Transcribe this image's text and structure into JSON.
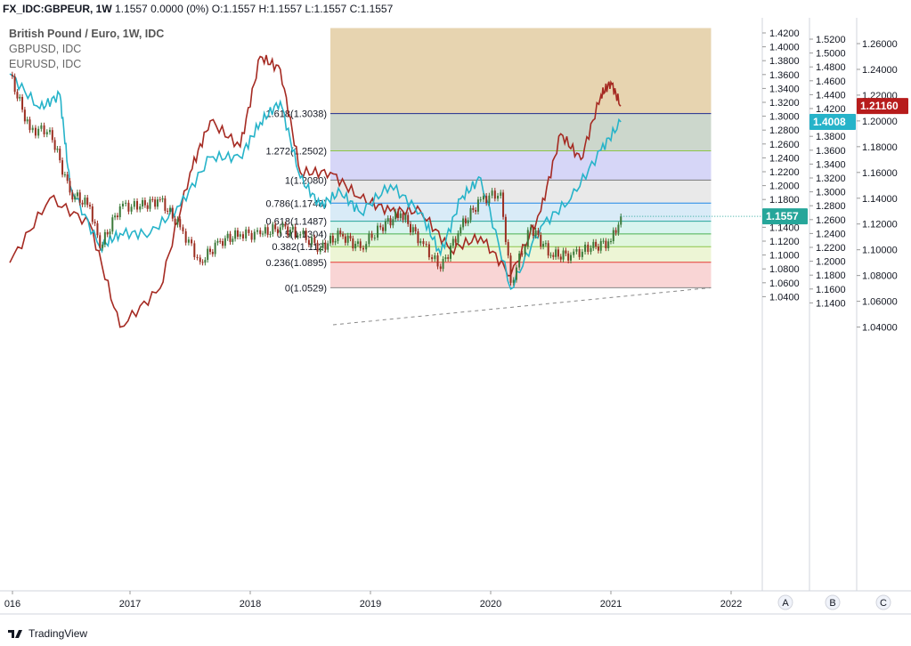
{
  "header": {
    "symbol": "FX_IDC:GBPEUR, 1W",
    "ohlc": "1.1557  0.0000 (0%)  O:1.1557  H:1.1557  L:1.1557  C:1.1557"
  },
  "legend": {
    "main": "British Pound / Euro, 1W, IDC",
    "s2": "GBPUSD, IDC",
    "s3": "EURUSD, IDC"
  },
  "footer": {
    "brand": "TradingView"
  },
  "colors": {
    "main_up": "#3c7a3a",
    "main_down": "#9b2d20",
    "gbpusd": "#26b3c9",
    "eurusd": "#a52a22",
    "badge_main": "#26a69a",
    "badge_gbpusd": "#26b3c9",
    "badge_eurusd": "#b71c1c"
  },
  "chart_data": {
    "type": "line",
    "x_ticks": [
      "016",
      "2017",
      "2018",
      "2019",
      "2020",
      "2021",
      "2022"
    ],
    "axis_A": {
      "label": "A",
      "ticks": [
        "1.4200",
        "1.4000",
        "1.3800",
        "1.3600",
        "1.3400",
        "1.3200",
        "1.3000",
        "1.2800",
        "1.2600",
        "1.2400",
        "1.2200",
        "1.2000",
        "1.1800",
        "1.1600",
        "1.1400",
        "1.1200",
        "1.1000",
        "1.0800",
        "1.0600",
        "1.0400"
      ],
      "last": "1.1557"
    },
    "axis_B": {
      "label": "B",
      "ticks": [
        "1.5200",
        "1.5000",
        "1.4800",
        "1.4600",
        "1.4400",
        "1.4200",
        "1.4000",
        "1.3800",
        "1.3600",
        "1.3400",
        "1.3200",
        "1.3000",
        "1.2800",
        "1.2600",
        "1.2400",
        "1.2200",
        "1.2000",
        "1.1800",
        "1.1600",
        "1.1400"
      ],
      "last": "1.4008"
    },
    "axis_C": {
      "label": "C",
      "ticks": [
        "1.26000",
        "1.24000",
        "1.22000",
        "1.20000",
        "1.18000",
        "1.16000",
        "1.14000",
        "1.12000",
        "1.10000",
        "1.08000",
        "1.06000",
        "1.04000"
      ],
      "last": "1.21160"
    },
    "fibonacci": [
      {
        "label": "1.618(1.3038)",
        "value": 1.3038,
        "color": "#1f2b8f",
        "fill": "rgba(201,160,80,0.45)"
      },
      {
        "label": "1.272(1.2502)",
        "value": 1.2502,
        "color": "#8bc34a",
        "fill": "rgba(110,140,110,0.35)"
      },
      {
        "label": "1(1.2080)",
        "value": 1.208,
        "color": "#777777",
        "fill": "rgba(120,120,230,0.30)"
      },
      {
        "label": "0.786(1.1748)",
        "value": 1.1748,
        "color": "#1e88e5",
        "fill": "rgba(200,200,200,0.40)"
      },
      {
        "label": "0.618(1.1487)",
        "value": 1.1487,
        "color": "#26a69a",
        "fill": "rgba(130,190,230,0.30)"
      },
      {
        "label": "0.5(1.1304)",
        "value": 1.1304,
        "color": "#4caf50",
        "fill": "rgba(100,210,190,0.25)"
      },
      {
        "label": "0.382(1.112)",
        "value": 1.112,
        "color": "#8bc34a",
        "fill": "rgba(130,220,120,0.25)"
      },
      {
        "label": "0.236(1.0895)",
        "value": 1.0895,
        "color": "#e53935",
        "fill": "rgba(210,230,150,0.40)"
      },
      {
        "label": "0(1.0529)",
        "value": 1.0529,
        "color": "#888888",
        "fill": "rgba(240,150,150,0.40)"
      }
    ],
    "fib_top": 1.427,
    "fib_start": "2018-09",
    "fib_end": "2021-11",
    "gbpeur_weekly_approx": [
      [
        "2016-01",
        1.36
      ],
      [
        "2016-03",
        1.28
      ],
      [
        "2016-05",
        1.28
      ],
      [
        "2016-07",
        1.19
      ],
      [
        "2016-09",
        1.17
      ],
      [
        "2016-10",
        1.11
      ],
      [
        "2016-12",
        1.17
      ],
      [
        "2017-02",
        1.17
      ],
      [
        "2017-04",
        1.18
      ],
      [
        "2017-06",
        1.14
      ],
      [
        "2017-08",
        1.09
      ],
      [
        "2017-10",
        1.12
      ],
      [
        "2017-12",
        1.13
      ],
      [
        "2018-02",
        1.13
      ],
      [
        "2018-04",
        1.14
      ],
      [
        "2018-06",
        1.13
      ],
      [
        "2018-08",
        1.11
      ],
      [
        "2018-10",
        1.13
      ],
      [
        "2018-12",
        1.11
      ],
      [
        "2019-02",
        1.14
      ],
      [
        "2019-04",
        1.16
      ],
      [
        "2019-06",
        1.12
      ],
      [
        "2019-08",
        1.08
      ],
      [
        "2019-10",
        1.14
      ],
      [
        "2019-12",
        1.18
      ],
      [
        "2020-02",
        1.19
      ],
      [
        "2020-03",
        1.06
      ],
      [
        "2020-05",
        1.14
      ],
      [
        "2020-07",
        1.1
      ],
      [
        "2020-09",
        1.1
      ],
      [
        "2020-11",
        1.11
      ],
      [
        "2021-01",
        1.12
      ],
      [
        "2021-02",
        1.1557
      ]
    ],
    "gbpusd_approx": [
      [
        "2016-01",
        1.47
      ],
      [
        "2016-04",
        1.42
      ],
      [
        "2016-06",
        1.44
      ],
      [
        "2016-07",
        1.31
      ],
      [
        "2016-10",
        1.22
      ],
      [
        "2016-12",
        1.24
      ],
      [
        "2017-03",
        1.24
      ],
      [
        "2017-06",
        1.28
      ],
      [
        "2017-09",
        1.35
      ],
      [
        "2017-12",
        1.35
      ],
      [
        "2018-02",
        1.4
      ],
      [
        "2018-04",
        1.43
      ],
      [
        "2018-06",
        1.32
      ],
      [
        "2018-08",
        1.28
      ],
      [
        "2018-10",
        1.3
      ],
      [
        "2018-12",
        1.27
      ],
      [
        "2019-03",
        1.31
      ],
      [
        "2019-06",
        1.27
      ],
      [
        "2019-08",
        1.21
      ],
      [
        "2019-10",
        1.29
      ],
      [
        "2019-12",
        1.32
      ],
      [
        "2020-03",
        1.16
      ],
      [
        "2020-06",
        1.25
      ],
      [
        "2020-09",
        1.29
      ],
      [
        "2020-12",
        1.36
      ],
      [
        "2021-02",
        1.4008
      ]
    ],
    "eurusd_approx": [
      [
        "2016-01",
        1.09
      ],
      [
        "2016-05",
        1.14
      ],
      [
        "2016-09",
        1.12
      ],
      [
        "2016-12",
        1.04
      ],
      [
        "2017-04",
        1.07
      ],
      [
        "2017-07",
        1.16
      ],
      [
        "2017-09",
        1.2
      ],
      [
        "2017-12",
        1.18
      ],
      [
        "2018-02",
        1.25
      ],
      [
        "2018-04",
        1.24
      ],
      [
        "2018-06",
        1.16
      ],
      [
        "2018-09",
        1.16
      ],
      [
        "2018-12",
        1.14
      ],
      [
        "2019-03",
        1.13
      ],
      [
        "2019-06",
        1.13
      ],
      [
        "2019-09",
        1.1
      ],
      [
        "2019-12",
        1.11
      ],
      [
        "2020-03",
        1.08
      ],
      [
        "2020-06",
        1.13
      ],
      [
        "2020-08",
        1.19
      ],
      [
        "2020-10",
        1.17
      ],
      [
        "2020-12",
        1.22
      ],
      [
        "2021-01",
        1.23
      ],
      [
        "2021-02",
        1.2116
      ]
    ]
  }
}
